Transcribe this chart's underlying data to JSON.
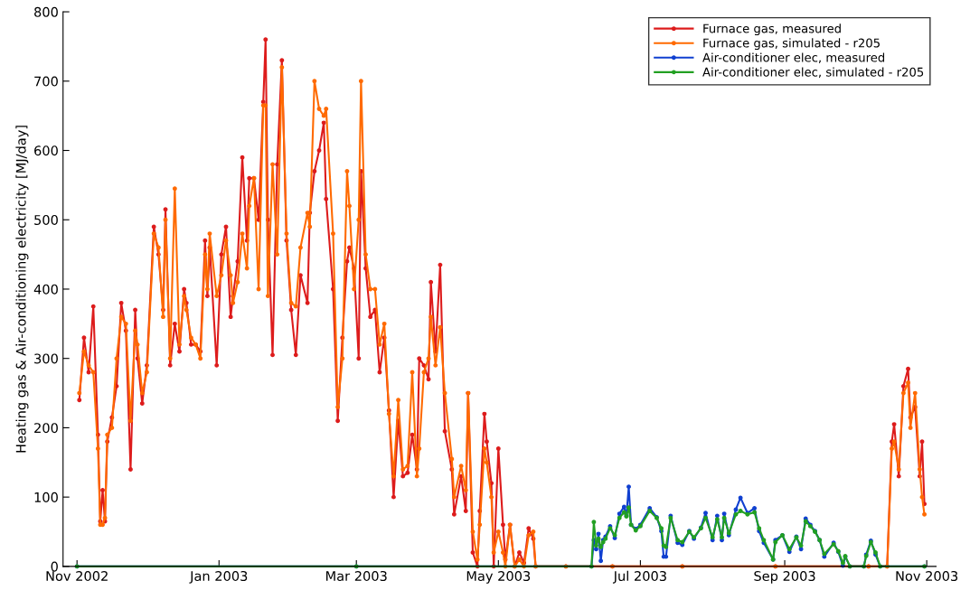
{
  "chart_data": {
    "type": "line",
    "ylabel": "Heating gas & Air-conditioning electricity [MJ/day]",
    "x": [
      "2002-11-02",
      "2002-11-04",
      "2002-11-06",
      "2002-11-08",
      "2002-11-10",
      "2002-11-11",
      "2002-11-12",
      "2002-11-13",
      "2002-11-14",
      "2002-11-16",
      "2002-11-18",
      "2002-11-20",
      "2002-11-22",
      "2002-11-24",
      "2002-11-26",
      "2002-11-27",
      "2002-11-29",
      "2002-12-01",
      "2002-12-04",
      "2002-12-06",
      "2002-12-08",
      "2002-12-09",
      "2002-12-11",
      "2002-12-13",
      "2002-12-15",
      "2002-12-17",
      "2002-12-18",
      "2002-12-20",
      "2002-12-22",
      "2002-12-24",
      "2002-12-26",
      "2002-12-27",
      "2002-12-28",
      "2002-12-31",
      "2003-01-02",
      "2003-01-04",
      "2003-01-06",
      "2003-01-07",
      "2003-01-09",
      "2003-01-11",
      "2003-01-13",
      "2003-01-14",
      "2003-01-16",
      "2003-01-18",
      "2003-01-20",
      "2003-01-21",
      "2003-01-22",
      "2003-01-24",
      "2003-01-26",
      "2003-01-28",
      "2003-01-30",
      "2003-02-01",
      "2003-02-03",
      "2003-02-05",
      "2003-02-08",
      "2003-02-09",
      "2003-02-11",
      "2003-02-13",
      "2003-02-15",
      "2003-02-16",
      "2003-02-19",
      "2003-02-21",
      "2003-02-23",
      "2003-02-25",
      "2003-02-26",
      "2003-02-28",
      "2003-03-02",
      "2003-03-03",
      "2003-03-05",
      "2003-03-07",
      "2003-03-09",
      "2003-03-11",
      "2003-03-13",
      "2003-03-15",
      "2003-03-17",
      "2003-03-19",
      "2003-03-21",
      "2003-03-23",
      "2003-03-25",
      "2003-03-27",
      "2003-03-28",
      "2003-03-30",
      "2003-04-01",
      "2003-04-02",
      "2003-04-04",
      "2003-04-06",
      "2003-04-08",
      "2003-04-11",
      "2003-04-12",
      "2003-04-15",
      "2003-04-17",
      "2003-04-18",
      "2003-04-20",
      "2003-04-22",
      "2003-04-23",
      "2003-04-25",
      "2003-04-26",
      "2003-04-28",
      "2003-04-29",
      "2003-05-01",
      "2003-05-03",
      "2003-05-04",
      "2003-05-06",
      "2003-05-08",
      "2003-05-10",
      "2003-05-12",
      "2003-05-14",
      "2003-05-16",
      "2003-05-17",
      "2003-05-30",
      "2003-06-19",
      "2003-07-19",
      "2003-08-28",
      "2003-10-07",
      "2003-10-15",
      "2003-10-17",
      "2003-10-18",
      "2003-10-20",
      "2003-10-22",
      "2003-10-24",
      "2003-10-25",
      "2003-10-27",
      "2003-10-29",
      "2003-10-30",
      "2003-10-31"
    ],
    "series": [
      {
        "name": "Furnace gas, measured",
        "color": "#dd1c1c",
        "values": [
          240,
          330,
          280,
          375,
          190,
          65,
          110,
          65,
          180,
          215,
          260,
          380,
          340,
          140,
          370,
          300,
          235,
          290,
          490,
          450,
          370,
          515,
          290,
          350,
          310,
          400,
          380,
          320,
          320,
          310,
          470,
          390,
          460,
          290,
          450,
          490,
          360,
          390,
          440,
          590,
          470,
          560,
          560,
          500,
          670,
          760,
          500,
          305,
          580,
          730,
          470,
          370,
          305,
          420,
          380,
          510,
          570,
          600,
          640,
          530,
          400,
          210,
          330,
          440,
          460,
          430,
          300,
          570,
          430,
          360,
          370,
          280,
          330,
          225,
          100,
          210,
          130,
          135,
          190,
          140,
          300,
          290,
          270,
          410,
          310,
          435,
          195,
          140,
          75,
          130,
          80,
          250,
          20,
          0,
          80,
          220,
          180,
          120,
          0,
          170,
          60,
          10,
          60,
          0,
          20,
          5,
          55,
          40,
          0,
          0,
          0,
          0,
          0,
          0,
          0,
          180,
          205,
          130,
          260,
          285,
          215,
          230,
          130,
          180,
          90
        ]
      },
      {
        "name": "Furnace gas, simulated - r205",
        "color": "#ff6a00",
        "values": [
          250,
          310,
          290,
          280,
          170,
          60,
          60,
          70,
          190,
          200,
          300,
          360,
          350,
          210,
          340,
          320,
          250,
          280,
          480,
          460,
          360,
          500,
          300,
          545,
          320,
          390,
          370,
          330,
          320,
          300,
          450,
          400,
          480,
          390,
          420,
          470,
          420,
          380,
          410,
          480,
          430,
          520,
          560,
          400,
          665,
          665,
          390,
          580,
          450,
          720,
          480,
          380,
          375,
          460,
          510,
          490,
          700,
          660,
          650,
          660,
          480,
          230,
          300,
          570,
          520,
          400,
          500,
          700,
          450,
          400,
          400,
          320,
          350,
          220,
          130,
          240,
          140,
          145,
          280,
          130,
          170,
          280,
          300,
          360,
          290,
          345,
          250,
          155,
          100,
          145,
          110,
          250,
          50,
          10,
          60,
          170,
          150,
          100,
          20,
          50,
          20,
          0,
          60,
          0,
          10,
          0,
          45,
          50,
          0,
          0,
          0,
          0,
          0,
          0,
          0,
          170,
          180,
          140,
          250,
          265,
          200,
          250,
          140,
          100,
          75
        ]
      },
      {
        "name": "Air-conditioner elec, measured",
        "color": "#1040d0",
        "x": [
          "2002-11-01",
          "2003-03-01",
          "2003-06-10",
          "2003-06-11",
          "2003-06-12",
          "2003-06-13",
          "2003-06-14",
          "2003-06-15",
          "2003-06-16",
          "2003-06-18",
          "2003-06-20",
          "2003-06-22",
          "2003-06-24",
          "2003-06-25",
          "2003-06-26",
          "2003-06-27",
          "2003-06-29",
          "2003-07-01",
          "2003-07-05",
          "2003-07-08",
          "2003-07-10",
          "2003-07-11",
          "2003-07-12",
          "2003-07-14",
          "2003-07-17",
          "2003-07-19",
          "2003-07-22",
          "2003-07-24",
          "2003-07-27",
          "2003-07-29",
          "2003-08-01",
          "2003-08-03",
          "2003-08-05",
          "2003-08-06",
          "2003-08-08",
          "2003-08-11",
          "2003-08-13",
          "2003-08-16",
          "2003-08-19",
          "2003-08-21",
          "2003-08-23",
          "2003-08-27",
          "2003-08-28",
          "2003-08-31",
          "2003-09-03",
          "2003-09-06",
          "2003-09-08",
          "2003-09-10",
          "2003-09-12",
          "2003-09-14",
          "2003-09-16",
          "2003-09-18",
          "2003-09-22",
          "2003-09-24",
          "2003-09-26",
          "2003-09-27",
          "2003-09-29",
          "2003-10-05",
          "2003-10-06",
          "2003-10-08",
          "2003-10-10",
          "2003-10-12",
          "2003-10-31"
        ],
        "values": [
          0,
          0,
          0,
          38,
          25,
          47,
          8,
          38,
          43,
          58,
          41,
          76,
          86,
          73,
          115,
          60,
          54,
          60,
          84,
          71,
          51,
          14,
          14,
          73,
          34,
          31,
          51,
          40,
          56,
          77,
          38,
          73,
          38,
          76,
          45,
          82,
          99,
          77,
          84,
          51,
          34,
          10,
          38,
          45,
          21,
          43,
          25,
          69,
          60,
          51,
          38,
          14,
          34,
          21,
          1,
          14,
          0,
          0,
          17,
          37,
          17,
          0,
          0
        ]
      },
      {
        "name": "Air-conditioner elec, simulated - r205",
        "color": "#22a022",
        "x": [
          "2002-11-01",
          "2003-03-01",
          "2003-06-10",
          "2003-06-11",
          "2003-06-12",
          "2003-06-13",
          "2003-06-14",
          "2003-06-15",
          "2003-06-16",
          "2003-06-18",
          "2003-06-20",
          "2003-06-22",
          "2003-06-24",
          "2003-06-25",
          "2003-06-26",
          "2003-06-27",
          "2003-06-29",
          "2003-07-01",
          "2003-07-05",
          "2003-07-08",
          "2003-07-10",
          "2003-07-11",
          "2003-07-12",
          "2003-07-14",
          "2003-07-17",
          "2003-07-19",
          "2003-07-22",
          "2003-07-24",
          "2003-07-27",
          "2003-07-29",
          "2003-08-01",
          "2003-08-03",
          "2003-08-05",
          "2003-08-06",
          "2003-08-08",
          "2003-08-11",
          "2003-08-13",
          "2003-08-16",
          "2003-08-19",
          "2003-08-21",
          "2003-08-23",
          "2003-08-27",
          "2003-08-28",
          "2003-08-31",
          "2003-09-03",
          "2003-09-06",
          "2003-09-08",
          "2003-09-10",
          "2003-09-12",
          "2003-09-14",
          "2003-09-16",
          "2003-09-18",
          "2003-09-22",
          "2003-09-24",
          "2003-09-26",
          "2003-09-27",
          "2003-09-29",
          "2003-10-05",
          "2003-10-06",
          "2003-10-08",
          "2003-10-10",
          "2003-10-12",
          "2003-10-31"
        ],
        "values": [
          0,
          0,
          0,
          64,
          30,
          40,
          28,
          35,
          40,
          55,
          45,
          70,
          78,
          72,
          85,
          60,
          52,
          58,
          80,
          70,
          55,
          30,
          28,
          70,
          38,
          35,
          50,
          42,
          55,
          70,
          42,
          68,
          42,
          70,
          48,
          75,
          80,
          75,
          78,
          55,
          38,
          10,
          35,
          45,
          25,
          42,
          30,
          65,
          58,
          50,
          38,
          18,
          32,
          22,
          5,
          15,
          0,
          0,
          15,
          35,
          20,
          0,
          0
        ]
      }
    ],
    "xlim": [
      "2002-10-26",
      "2003-11-05"
    ],
    "xticks": [
      {
        "value": "2002-11-01",
        "label": "Nov 2002"
      },
      {
        "value": "2003-01-01",
        "label": "Jan 2003"
      },
      {
        "value": "2003-03-01",
        "label": "Mar 2003"
      },
      {
        "value": "2003-05-01",
        "label": "May 2003"
      },
      {
        "value": "2003-07-01",
        "label": "Jul 2003"
      },
      {
        "value": "2003-09-01",
        "label": "Sep 2003"
      },
      {
        "value": "2003-11-01",
        "label": "Nov 2003"
      }
    ],
    "ylim": [
      0,
      800
    ],
    "yticks": [
      0,
      100,
      200,
      300,
      400,
      500,
      600,
      700,
      800
    ],
    "grid": false,
    "legend": "top right",
    "marker": "circle",
    "line_style": "solid"
  }
}
